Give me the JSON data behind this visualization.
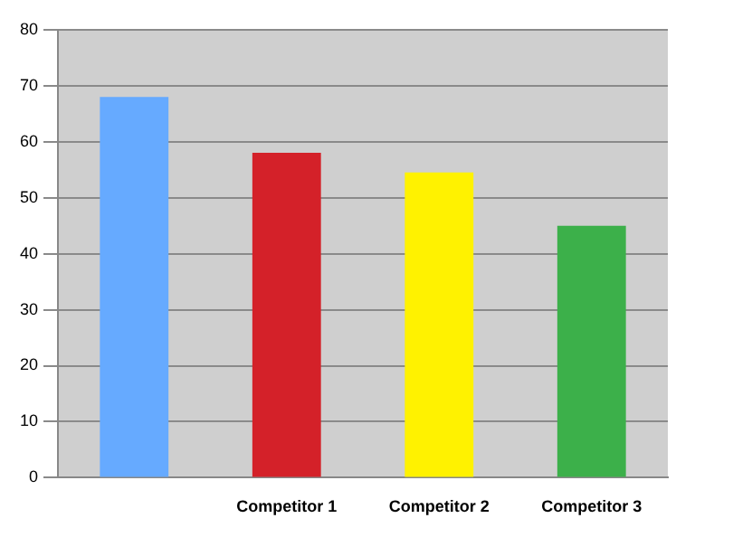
{
  "chart_data": {
    "type": "bar",
    "categories": [
      null,
      "Competitor 1",
      "Competitor 2",
      "Competitor 3"
    ],
    "values": [
      68,
      58,
      54.5,
      45
    ],
    "colors": [
      "#66aaff",
      "#d42129",
      "#fff200",
      "#3cb04a"
    ],
    "ylim": [
      0,
      80
    ],
    "yticks": [
      0,
      10,
      20,
      30,
      40,
      50,
      60,
      70,
      80
    ],
    "grid": "y"
  }
}
